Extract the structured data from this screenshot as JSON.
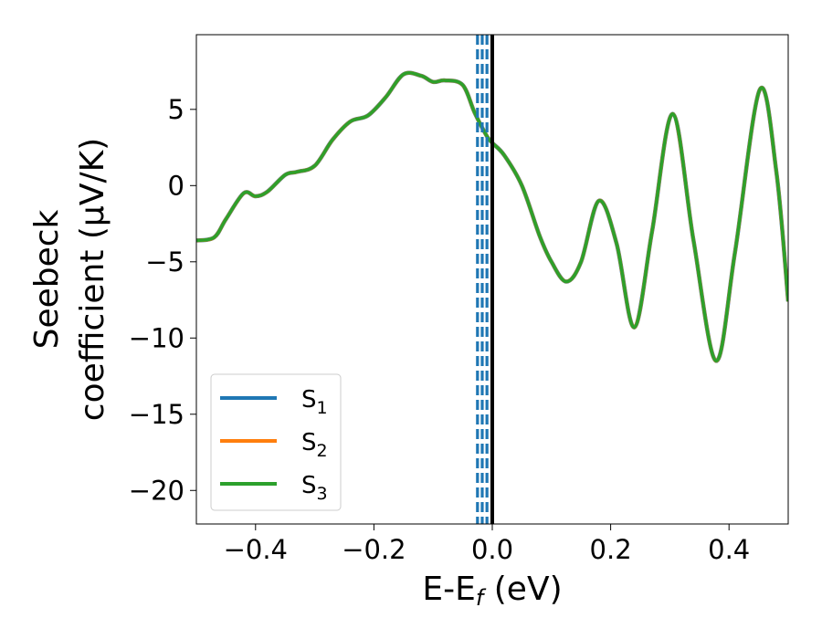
{
  "chart_data": {
    "type": "line",
    "xlabel": {
      "base": "E-E",
      "sub": "f",
      "suffix": " (eV)"
    },
    "ylabel": {
      "line1": "Seebeck",
      "line2": "coefficient  (μV/K)"
    },
    "xlim": [
      -0.5,
      0.5
    ],
    "ylim": [
      -22.2,
      9.9
    ],
    "x_ticks": [
      -0.4,
      -0.2,
      0.0,
      0.2,
      0.4
    ],
    "x_tick_labels": [
      "−0.4",
      "−0.2",
      "0.0",
      "0.2",
      "0.4"
    ],
    "y_ticks": [
      5,
      0,
      -5,
      -10,
      -15,
      -20
    ],
    "y_tick_labels": [
      "5",
      "0",
      "−5",
      "−10",
      "−15",
      "−20"
    ],
    "grid": false,
    "legend_position": "lower-left",
    "series": [
      {
        "name": "S",
        "sub": "1",
        "color": "#1f77b4"
      },
      {
        "name": "S",
        "sub": "2",
        "color": "#ff7f0e"
      },
      {
        "name": "S",
        "sub": "3",
        "color": "#2ca02c"
      }
    ],
    "curve_x": [
      -0.5,
      -0.47,
      -0.45,
      -0.42,
      -0.4,
      -0.38,
      -0.35,
      -0.33,
      -0.3,
      -0.27,
      -0.24,
      -0.21,
      -0.18,
      -0.15,
      -0.12,
      -0.1,
      -0.08,
      -0.05,
      -0.03,
      -0.01,
      0.0,
      0.02,
      0.05,
      0.08,
      0.1,
      0.125,
      0.15,
      0.18,
      0.21,
      0.24,
      0.27,
      0.305,
      0.34,
      0.378,
      0.41,
      0.452,
      0.48,
      0.5
    ],
    "curve_y": [
      -3.6,
      -3.4,
      -2.2,
      -0.5,
      -0.7,
      -0.4,
      0.7,
      0.9,
      1.3,
      3.0,
      4.2,
      4.6,
      5.8,
      7.3,
      7.2,
      6.8,
      6.9,
      6.6,
      4.8,
      3.3,
      2.8,
      2.0,
      0.0,
      -3.3,
      -5.0,
      -6.3,
      -5.0,
      -1.0,
      -3.8,
      -9.3,
      -3.0,
      4.7,
      -3.6,
      -11.5,
      -4.4,
      6.3,
      0.9,
      -7.6
    ],
    "vlines": [
      {
        "x": -0.025,
        "color": "#1f77b4",
        "style": "dashed"
      },
      {
        "x": -0.017,
        "color": "#1f77b4",
        "style": "dashed"
      },
      {
        "x": -0.009,
        "color": "#1f77b4",
        "style": "dashed"
      },
      {
        "x": 0.0,
        "color": "#000000",
        "style": "solid"
      }
    ]
  }
}
